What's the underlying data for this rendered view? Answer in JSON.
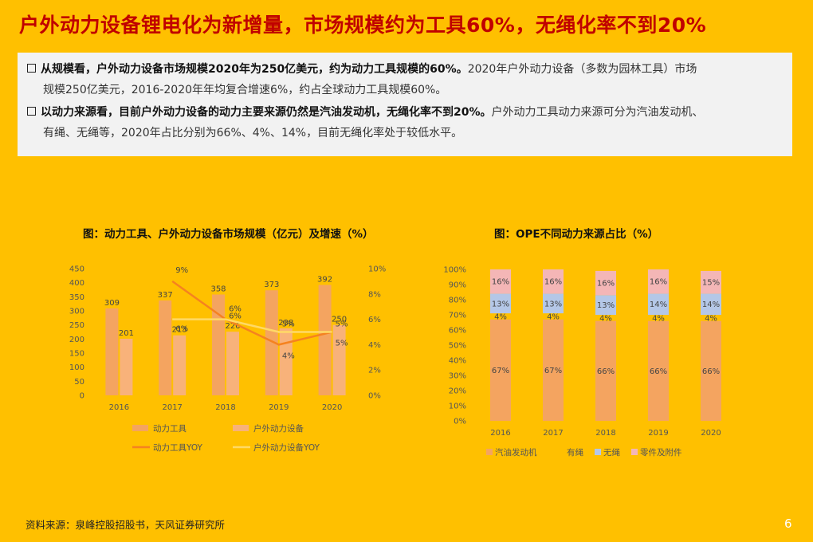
{
  "title": "户外动力设备锂电化为新增量，市场规模约为工具60%，无绳化率不到20%",
  "summary": {
    "p1_bold": "从规模看，户外动力设备市场规模2020年为250亿美元，约为动力工具规模的60%。",
    "p1_rest": "2020年户外动力设备（多数为园林工具）市场",
    "p1_line2": "规模250亿美元，2016-2020年年均复合增速6%，约占全球动力工具规模60%。",
    "p2_bold": "以动力来源看，目前户外动力设备的动力主要来源仍然是汽油发动机，无绳化率不到20%。",
    "p2_rest": "户外动力工具动力来源可分为汽油发动机、",
    "p2_line2": "有绳、无绳等，2020年占比分别为66%、4%、14%，目前无绳化率处于较低水平。"
  },
  "chart1_title": "图：动力工具、户外动力设备市场规模（亿元）及增速（%）",
  "chart2_title": "图：OPE不同动力来源占比（%）",
  "colors": {
    "power_tool_bar": "#F4A460",
    "ope_bar": "#F8B27A",
    "power_tool_yoy": "#F58220",
    "ope_yoy": "#FFD966",
    "gasoline": "#F4A460",
    "corded": "#FFC000",
    "cordless": "#B4C7E7",
    "parts": "#F4B6B6"
  },
  "chart_data": [
    {
      "type": "bar",
      "categories": [
        "2016",
        "2017",
        "2018",
        "2019",
        "2020"
      ],
      "series": [
        {
          "name": "动力工具",
          "kind": "bar",
          "axis": "left",
          "values": [
            309,
            337,
            358,
            373,
            392
          ],
          "labels": [
            "309",
            "337",
            "358",
            "373",
            "392"
          ]
        },
        {
          "name": "户外动力设备",
          "kind": "bar",
          "axis": "left",
          "values": [
            201,
            213,
            226,
            238,
            250
          ],
          "labels": [
            "201",
            "213",
            "226",
            "238",
            "250"
          ]
        },
        {
          "name": "动力工具YOY",
          "kind": "line",
          "axis": "right",
          "values": [
            null,
            9,
            6,
            4,
            5
          ],
          "labels": [
            "",
            "9%",
            "6%",
            "4%",
            "5%"
          ]
        },
        {
          "name": "户外动力设备YOY",
          "kind": "line",
          "axis": "right",
          "values": [
            null,
            6,
            6,
            5,
            5
          ],
          "labels": [
            "",
            "6%",
            "6%",
            "5%",
            "5%"
          ]
        }
      ],
      "ylim_left": [
        0,
        450
      ],
      "yticks_left": [
        "0",
        "50",
        "100",
        "150",
        "200",
        "250",
        "300",
        "350",
        "400",
        "450"
      ],
      "ylim_right": [
        0,
        10
      ],
      "yticks_right": [
        "0%",
        "2%",
        "4%",
        "6%",
        "8%",
        "10%"
      ],
      "legend": "bottom"
    },
    {
      "type": "bar",
      "stacked": true,
      "categories": [
        "2016",
        "2017",
        "2018",
        "2019",
        "2020"
      ],
      "series": [
        {
          "name": "汽油发动机",
          "values": [
            67,
            67,
            66,
            66,
            66
          ],
          "labels": [
            "67%",
            "67%",
            "66%",
            "66%",
            "66%"
          ]
        },
        {
          "name": "有绳",
          "values": [
            4,
            4,
            4,
            4,
            4
          ],
          "labels": [
            "4%",
            "4%",
            "4%",
            "4%",
            "4%"
          ]
        },
        {
          "name": "无绳",
          "values": [
            13,
            13,
            13,
            14,
            14
          ],
          "labels": [
            "13%",
            "13%",
            "13%",
            "14%",
            "14%"
          ]
        },
        {
          "name": "零件及附件",
          "values": [
            16,
            16,
            16,
            16,
            15
          ],
          "labels": [
            "16%",
            "16%",
            "16%",
            "16%",
            "15%"
          ]
        }
      ],
      "ylim": [
        0,
        100
      ],
      "yticks": [
        "0%",
        "10%",
        "20%",
        "30%",
        "40%",
        "50%",
        "60%",
        "70%",
        "80%",
        "90%",
        "100%"
      ],
      "legend": "bottom"
    }
  ],
  "source": "资料来源：泉峰控股招股书，天风证券研究所",
  "page_number": "6"
}
